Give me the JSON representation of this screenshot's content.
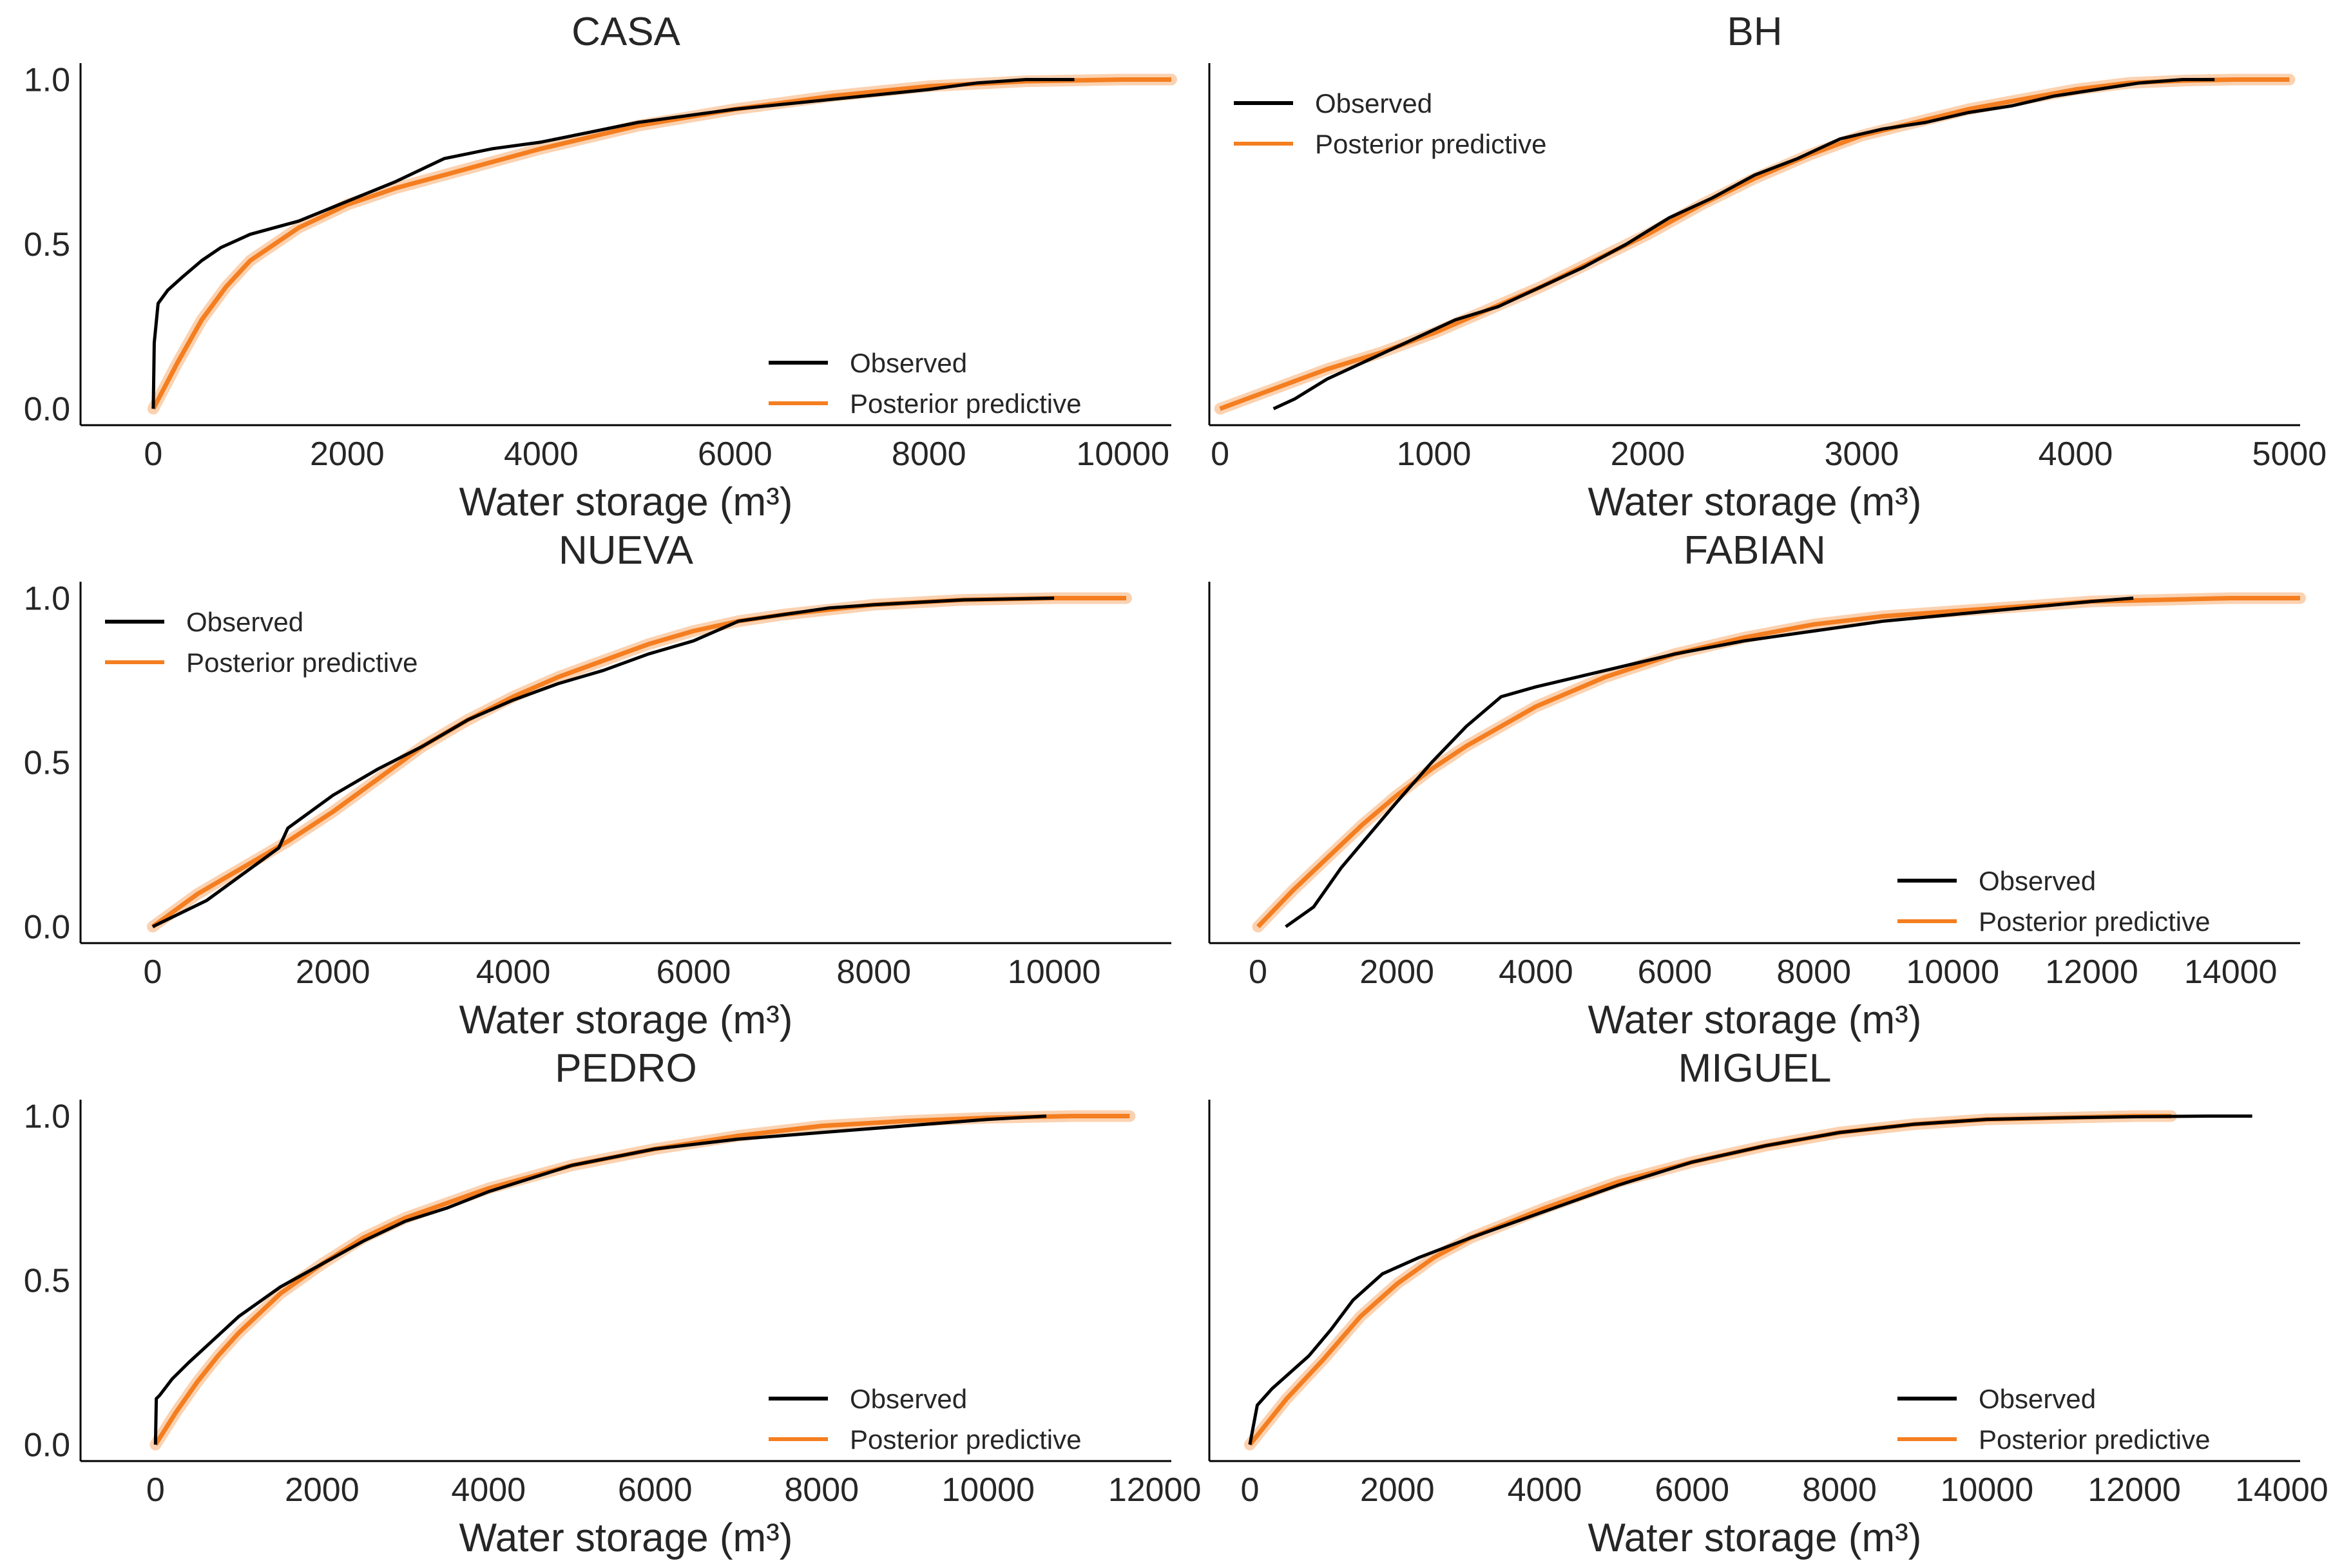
{
  "colors": {
    "observed": "#000000",
    "predictive": "#f47e20",
    "axis": "#000000",
    "text": "#262626"
  },
  "chart_data": [
    {
      "type": "line",
      "title": "CASA",
      "xlabel": "Water storage (m³)",
      "ylabel": "",
      "xlim": [
        -750,
        10500
      ],
      "ylim": [
        -0.05,
        1.05
      ],
      "xticks": [
        "0",
        "2000",
        "4000",
        "6000",
        "8000",
        "10000"
      ],
      "xtick_values": [
        0,
        2000,
        4000,
        6000,
        8000,
        10000
      ],
      "yticks": [
        "0.0",
        "0.5",
        "1.0"
      ],
      "ytick_values": [
        0.0,
        0.5,
        1.0
      ],
      "legend": {
        "position": "lower right",
        "entries": [
          "Observed",
          "Posterior predictive"
        ]
      },
      "series": [
        {
          "name": "Observed",
          "x": [
            0,
            10,
            50,
            150,
            300,
            500,
            700,
            1000,
            1500,
            2000,
            2500,
            3000,
            3500,
            4000,
            4500,
            5000,
            5500,
            6000,
            7000,
            8000,
            8500,
            9000,
            9500
          ],
          "y": [
            0.0,
            0.2,
            0.32,
            0.36,
            0.4,
            0.45,
            0.49,
            0.53,
            0.57,
            0.63,
            0.69,
            0.76,
            0.79,
            0.81,
            0.84,
            0.87,
            0.89,
            0.91,
            0.94,
            0.97,
            0.99,
            1.0,
            1.0
          ]
        },
        {
          "name": "Posterior predictive",
          "x": [
            0,
            250,
            500,
            750,
            1000,
            1500,
            2000,
            2500,
            3000,
            4000,
            5000,
            6000,
            7000,
            8000,
            9000,
            10000,
            10500
          ],
          "y": [
            0.0,
            0.14,
            0.27,
            0.37,
            0.45,
            0.55,
            0.62,
            0.67,
            0.71,
            0.79,
            0.86,
            0.91,
            0.95,
            0.98,
            0.995,
            1.0,
            1.0
          ]
        }
      ]
    },
    {
      "type": "line",
      "title": "BH",
      "xlabel": "Water storage (m³)",
      "ylabel": "",
      "xlim": [
        -50,
        5050
      ],
      "ylim": [
        -0.05,
        1.05
      ],
      "xticks": [
        "0",
        "1000",
        "2000",
        "3000",
        "4000",
        "5000"
      ],
      "xtick_values": [
        0,
        1000,
        2000,
        3000,
        4000,
        5000
      ],
      "yticks": [],
      "ytick_values": [],
      "legend": {
        "position": "upper left",
        "entries": [
          "Observed",
          "Posterior predictive"
        ]
      },
      "series": [
        {
          "name": "Observed",
          "x": [
            250,
            350,
            500,
            700,
            900,
            1100,
            1300,
            1500,
            1700,
            1900,
            2100,
            2300,
            2500,
            2700,
            2900,
            3100,
            3300,
            3500,
            3700,
            3900,
            4100,
            4300,
            4500,
            4650
          ],
          "y": [
            0.0,
            0.03,
            0.09,
            0.15,
            0.21,
            0.27,
            0.31,
            0.37,
            0.43,
            0.5,
            0.58,
            0.64,
            0.71,
            0.76,
            0.82,
            0.85,
            0.87,
            0.9,
            0.92,
            0.95,
            0.97,
            0.99,
            1.0,
            1.0
          ]
        },
        {
          "name": "Posterior predictive",
          "x": [
            0,
            250,
            500,
            750,
            1000,
            1250,
            1500,
            1750,
            2000,
            2250,
            2500,
            2750,
            3000,
            3250,
            3500,
            3750,
            4000,
            4250,
            4500,
            4750,
            5000
          ],
          "y": [
            0.0,
            0.06,
            0.12,
            0.17,
            0.23,
            0.3,
            0.37,
            0.45,
            0.53,
            0.62,
            0.7,
            0.77,
            0.83,
            0.87,
            0.91,
            0.94,
            0.97,
            0.99,
            0.997,
            1.0,
            1.0
          ]
        }
      ]
    },
    {
      "type": "line",
      "title": "NUEVA",
      "xlabel": "Water storage (m³)",
      "ylabel": "",
      "xlim": [
        -800,
        11300
      ],
      "ylim": [
        -0.05,
        1.05
      ],
      "xticks": [
        "0",
        "2000",
        "4000",
        "6000",
        "8000",
        "10000"
      ],
      "xtick_values": [
        0,
        2000,
        4000,
        6000,
        8000,
        10000
      ],
      "yticks": [
        "0.0",
        "0.5",
        "1.0"
      ],
      "ytick_values": [
        0.0,
        0.5,
        1.0
      ],
      "legend": {
        "position": "upper left",
        "entries": [
          "Observed",
          "Posterior predictive"
        ]
      },
      "series": [
        {
          "name": "Observed",
          "x": [
            0,
            300,
            600,
            1000,
            1400,
            1500,
            2000,
            2500,
            3000,
            3500,
            4000,
            4500,
            5000,
            5500,
            6000,
            6500,
            7000,
            7500,
            8000,
            9000,
            10000
          ],
          "y": [
            0.0,
            0.04,
            0.08,
            0.16,
            0.24,
            0.3,
            0.4,
            0.48,
            0.55,
            0.63,
            0.69,
            0.74,
            0.78,
            0.83,
            0.87,
            0.93,
            0.95,
            0.97,
            0.98,
            0.995,
            1.0
          ]
        },
        {
          "name": "Posterior predictive",
          "x": [
            0,
            500,
            1000,
            1500,
            2000,
            2500,
            3000,
            3500,
            4000,
            4500,
            5000,
            5500,
            6000,
            6500,
            7000,
            8000,
            9000,
            10000,
            10800
          ],
          "y": [
            0.0,
            0.1,
            0.18,
            0.26,
            0.35,
            0.45,
            0.55,
            0.63,
            0.7,
            0.76,
            0.81,
            0.86,
            0.9,
            0.93,
            0.95,
            0.98,
            0.995,
            1.0,
            1.0
          ]
        }
      ]
    },
    {
      "type": "line",
      "title": "FABIAN",
      "xlabel": "Water storage (m³)",
      "ylabel": "",
      "xlim": [
        -700,
        15000
      ],
      "ylim": [
        -0.05,
        1.05
      ],
      "xticks": [
        "0",
        "2000",
        "4000",
        "6000",
        "8000",
        "10000",
        "12000",
        "14000"
      ],
      "xtick_values": [
        0,
        2000,
        4000,
        6000,
        8000,
        10000,
        12000,
        14000
      ],
      "yticks": [],
      "ytick_values": [],
      "legend": {
        "position": "lower right",
        "entries": [
          "Observed",
          "Posterior predictive"
        ]
      },
      "series": [
        {
          "name": "Observed",
          "x": [
            400,
            800,
            1200,
            1600,
            2000,
            2500,
            3000,
            3500,
            4000,
            5000,
            6000,
            7000,
            8000,
            9000,
            10000,
            11000,
            12000,
            12600
          ],
          "y": [
            0.0,
            0.06,
            0.18,
            0.28,
            0.38,
            0.5,
            0.61,
            0.7,
            0.73,
            0.78,
            0.83,
            0.87,
            0.9,
            0.93,
            0.95,
            0.97,
            0.99,
            1.0
          ]
        },
        {
          "name": "Posterior predictive",
          "x": [
            0,
            500,
            1000,
            1500,
            2000,
            2500,
            3000,
            4000,
            5000,
            6000,
            7000,
            8000,
            9000,
            10000,
            11000,
            12000,
            13000,
            14000,
            15000
          ],
          "y": [
            0.0,
            0.11,
            0.21,
            0.31,
            0.4,
            0.48,
            0.55,
            0.67,
            0.76,
            0.83,
            0.88,
            0.92,
            0.945,
            0.96,
            0.975,
            0.99,
            0.995,
            1.0,
            1.0
          ]
        }
      ]
    },
    {
      "type": "line",
      "title": "PEDRO",
      "xlabel": "Water storage (m³)",
      "ylabel": "",
      "xlim": [
        -900,
        12200
      ],
      "ylim": [
        -0.05,
        1.05
      ],
      "xticks": [
        "0",
        "2000",
        "4000",
        "6000",
        "8000",
        "10000",
        "12000"
      ],
      "xtick_values": [
        0,
        2000,
        4000,
        6000,
        8000,
        10000,
        12000
      ],
      "yticks": [
        "0.0",
        "0.5",
        "1.0"
      ],
      "ytick_values": [
        0.0,
        0.5,
        1.0
      ],
      "legend": {
        "position": "lower right",
        "entries": [
          "Observed",
          "Posterior predictive"
        ]
      },
      "series": [
        {
          "name": "Observed",
          "x": [
            0,
            10,
            50,
            200,
            400,
            700,
            1000,
            1500,
            2000,
            2500,
            3000,
            3500,
            4000,
            5000,
            6000,
            7000,
            8000,
            9000,
            10000,
            10700
          ],
          "y": [
            0.0,
            0.14,
            0.15,
            0.2,
            0.25,
            0.32,
            0.39,
            0.48,
            0.55,
            0.62,
            0.68,
            0.72,
            0.77,
            0.85,
            0.9,
            0.93,
            0.95,
            0.97,
            0.99,
            1.0
          ]
        },
        {
          "name": "Posterior predictive",
          "x": [
            0,
            250,
            500,
            750,
            1000,
            1500,
            2000,
            2500,
            3000,
            4000,
            5000,
            6000,
            7000,
            8000,
            9000,
            10000,
            11000,
            11700
          ],
          "y": [
            0.0,
            0.1,
            0.19,
            0.27,
            0.34,
            0.46,
            0.55,
            0.63,
            0.69,
            0.78,
            0.85,
            0.9,
            0.94,
            0.97,
            0.985,
            0.995,
            1.0,
            1.0
          ]
        }
      ]
    },
    {
      "type": "line",
      "title": "MIGUEL",
      "xlabel": "Water storage (m³)",
      "ylabel": "",
      "xlim": [
        -550,
        14250
      ],
      "ylim": [
        -0.05,
        1.05
      ],
      "xticks": [
        "0",
        "2000",
        "4000",
        "6000",
        "8000",
        "10000",
        "12000",
        "14000"
      ],
      "xtick_values": [
        0,
        2000,
        4000,
        6000,
        8000,
        10000,
        12000,
        14000
      ],
      "yticks": [],
      "ytick_values": [],
      "legend": {
        "position": "lower right",
        "entries": [
          "Observed",
          "Posterior predictive"
        ]
      },
      "series": [
        {
          "name": "Observed",
          "x": [
            0,
            100,
            300,
            500,
            800,
            1100,
            1400,
            1800,
            2300,
            3000,
            4000,
            5000,
            6000,
            7000,
            8000,
            9000,
            10000,
            11000,
            12000,
            13000,
            13600
          ],
          "y": [
            0.0,
            0.12,
            0.17,
            0.21,
            0.27,
            0.35,
            0.44,
            0.52,
            0.57,
            0.63,
            0.71,
            0.79,
            0.86,
            0.91,
            0.95,
            0.975,
            0.99,
            0.995,
            0.998,
            1.0,
            1.0
          ]
        },
        {
          "name": "Posterior predictive",
          "x": [
            0,
            250,
            500,
            750,
            1000,
            1500,
            2000,
            2500,
            3000,
            4000,
            5000,
            6000,
            7000,
            8000,
            9000,
            10000,
            11000,
            12000,
            12500
          ],
          "y": [
            0.0,
            0.07,
            0.14,
            0.2,
            0.26,
            0.39,
            0.49,
            0.57,
            0.63,
            0.72,
            0.8,
            0.86,
            0.91,
            0.95,
            0.975,
            0.99,
            0.995,
            1.0,
            1.0
          ]
        }
      ]
    }
  ]
}
